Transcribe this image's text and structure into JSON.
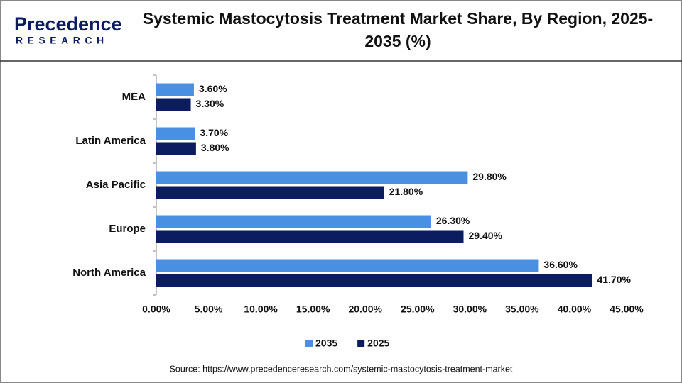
{
  "logo": {
    "name": "Precedence",
    "tagline": "RESEARCH"
  },
  "chart_data": {
    "type": "hbar",
    "title": "Systemic Mastocytosis Treatment Market Share, By Region, 2025-2035 (%)",
    "categories": [
      "MEA",
      "Latin America",
      "Asia Pacific",
      "Europe",
      "North America"
    ],
    "series": [
      {
        "name": "2035",
        "color": "#4a90e2",
        "values": [
          3.6,
          3.7,
          29.8,
          26.3,
          36.6
        ],
        "value_labels": [
          "3.60%",
          "3.70%",
          "29.80%",
          "26.30%",
          "36.60%"
        ]
      },
      {
        "name": "2025",
        "color": "#0b1c61",
        "values": [
          3.3,
          3.8,
          21.8,
          29.4,
          41.7
        ],
        "value_labels": [
          "3.30%",
          "3.80%",
          "21.80%",
          "29.40%",
          "41.70%"
        ]
      }
    ],
    "xlim": [
      0,
      45
    ],
    "xticks": [
      {
        "value": 0,
        "label": "0.00%"
      },
      {
        "value": 5,
        "label": "5.00%"
      },
      {
        "value": 10,
        "label": "10.00%"
      },
      {
        "value": 15,
        "label": "15.00%"
      },
      {
        "value": 20,
        "label": "20.00%"
      },
      {
        "value": 25,
        "label": "25.00%"
      },
      {
        "value": 30,
        "label": "30.00%"
      },
      {
        "value": 35,
        "label": "35.00%"
      },
      {
        "value": 40,
        "label": "40.00%"
      },
      {
        "value": 45,
        "label": "45.00%"
      }
    ],
    "grid": false,
    "legend": "bottom",
    "source": "Source: https://www.precedenceresearch.com/systemic-mastocytosis-treatment-market"
  }
}
